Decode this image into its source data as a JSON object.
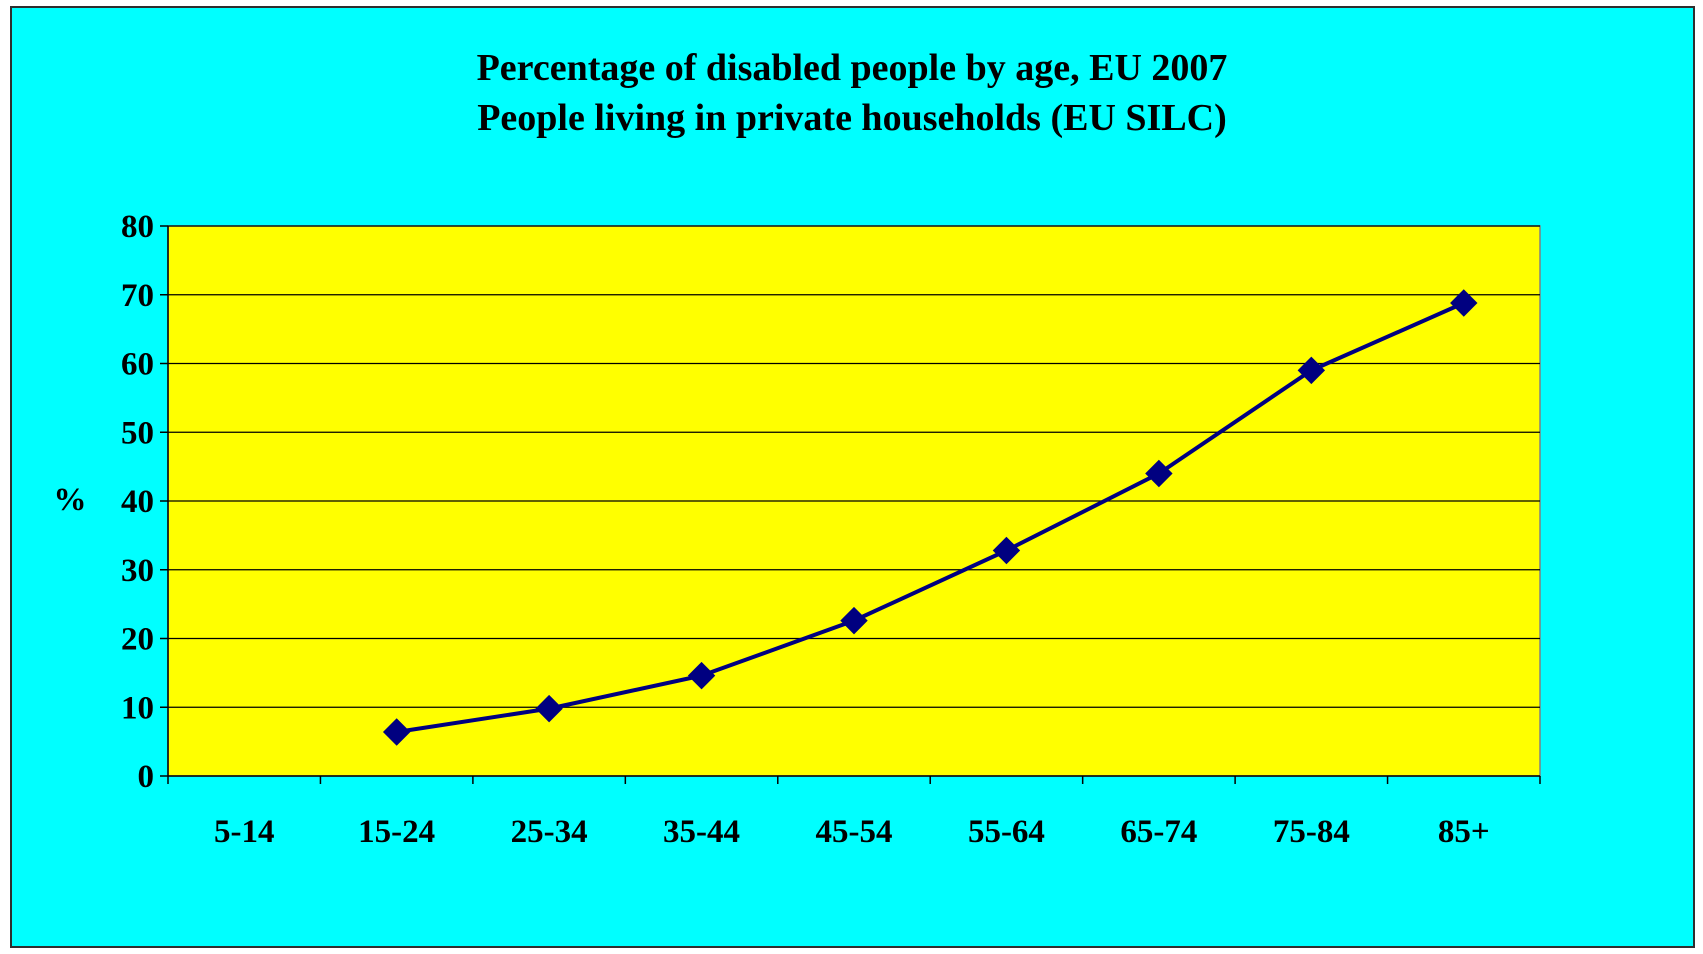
{
  "chart_data": {
    "type": "line",
    "title": "Percentage of disabled people by age, EU 2007",
    "subtitle": "People living in private households (EU SILC)",
    "xlabel": "",
    "ylabel": "%",
    "categories": [
      "5-14",
      "15-24",
      "25-34",
      "35-44",
      "45-54",
      "55-64",
      "65-74",
      "75-84",
      "85+"
    ],
    "series": [
      {
        "values": [
          null,
          6.4,
          9.8,
          14.6,
          22.6,
          32.8,
          44.0,
          59.0,
          68.8
        ]
      }
    ],
    "ylim": [
      0,
      80
    ],
    "yticks": [
      "0",
      "10",
      "20",
      "30",
      "40",
      "50",
      "60",
      "70",
      "80"
    ],
    "grid": "horizontal",
    "legend": "none",
    "colors": {
      "background": "#00ffff",
      "plot_area": "#ffff00",
      "line": "#000080",
      "marker": "#000080",
      "gridline": "#000000"
    }
  }
}
